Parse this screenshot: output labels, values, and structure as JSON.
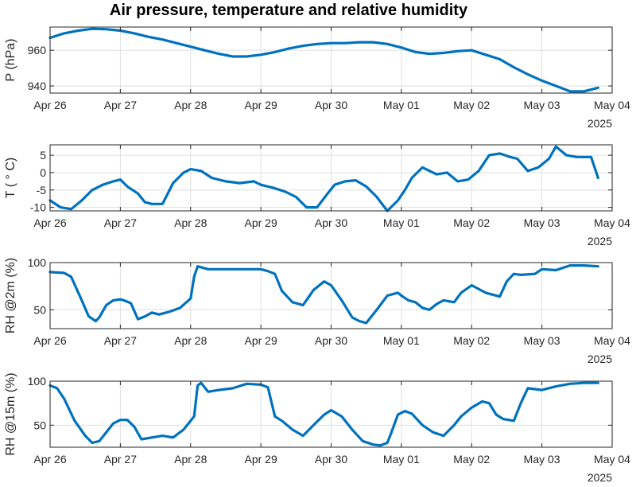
{
  "chart_data": {
    "title": "Air pressure, temperature and relative humidity",
    "line_color": "#0072BD",
    "x_tick_labels": [
      "Apr 26",
      "Apr 27",
      "Apr 28",
      "Apr 29",
      "Apr 30",
      "May 01",
      "May 02",
      "May 03",
      "May 04"
    ],
    "x_year_label": "2025",
    "panels": [
      {
        "type": "line",
        "ylabel": "P (hPa)",
        "xlim": [
          0,
          8
        ],
        "ylim": [
          936,
          973
        ],
        "yticks": [
          940,
          960
        ],
        "grid": true,
        "x": [
          0,
          0.2,
          0.4,
          0.6,
          0.8,
          1.0,
          1.2,
          1.4,
          1.6,
          1.8,
          2.0,
          2.2,
          2.4,
          2.6,
          2.8,
          3.0,
          3.2,
          3.4,
          3.6,
          3.8,
          4.0,
          4.2,
          4.4,
          4.6,
          4.8,
          5.0,
          5.2,
          5.4,
          5.6,
          5.8,
          6.0,
          6.2,
          6.4,
          6.6,
          6.8,
          7.0,
          7.2,
          7.4,
          7.6,
          7.8
        ],
        "y": [
          967,
          969.5,
          971,
          972,
          971.8,
          971,
          969.5,
          967.5,
          966,
          964,
          962,
          960,
          958,
          956.5,
          956.5,
          957.5,
          959,
          961,
          962.5,
          963.5,
          964,
          964,
          964.5,
          964.5,
          963.5,
          961.5,
          959,
          958,
          958.5,
          959.5,
          960,
          957.5,
          955,
          950.5,
          946.5,
          943,
          940,
          937,
          937,
          939
        ]
      },
      {
        "type": "line",
        "ylabel": "T ( ° C)",
        "xlim": [
          0,
          8
        ],
        "ylim": [
          -11,
          8
        ],
        "yticks": [
          -10,
          -5,
          0,
          5
        ],
        "grid": true,
        "x": [
          0,
          0.15,
          0.3,
          0.45,
          0.6,
          0.75,
          0.9,
          1.0,
          1.1,
          1.25,
          1.35,
          1.45,
          1.6,
          1.75,
          1.9,
          2.0,
          2.15,
          2.3,
          2.5,
          2.7,
          2.9,
          3.0,
          3.1,
          3.2,
          3.35,
          3.5,
          3.65,
          3.8,
          3.95,
          4.05,
          4.2,
          4.35,
          4.5,
          4.65,
          4.8,
          4.95,
          5.05,
          5.15,
          5.3,
          5.5,
          5.65,
          5.8,
          5.95,
          6.1,
          6.25,
          6.4,
          6.55,
          6.65,
          6.8,
          6.95,
          7.1,
          7.2,
          7.35,
          7.5,
          7.7,
          7.8
        ],
        "y": [
          -8,
          -10,
          -10.5,
          -8,
          -5,
          -3.5,
          -2.5,
          -2,
          -4,
          -6,
          -8.5,
          -9,
          -9,
          -3,
          0,
          1,
          0.5,
          -1.5,
          -2.5,
          -3,
          -2.5,
          -3.5,
          -4,
          -4.5,
          -5.5,
          -7,
          -10,
          -10,
          -6,
          -3.5,
          -2.5,
          -2.2,
          -4,
          -7,
          -11,
          -8,
          -5,
          -1.5,
          1.5,
          -0.5,
          0,
          -2.5,
          -2,
          0.5,
          5,
          5.5,
          4.5,
          4,
          0.5,
          1.5,
          4,
          7.5,
          5,
          4.5,
          4.5,
          -1.5
        ]
      },
      {
        "type": "line",
        "ylabel": "RH @2m (%)",
        "xlim": [
          0,
          8
        ],
        "ylim": [
          30,
          100
        ],
        "yticks": [
          50,
          100
        ],
        "grid": true,
        "x": [
          0,
          0.2,
          0.3,
          0.45,
          0.55,
          0.65,
          0.7,
          0.8,
          0.9,
          1.0,
          1.05,
          1.15,
          1.25,
          1.35,
          1.45,
          1.55,
          1.7,
          1.85,
          2.0,
          2.05,
          2.1,
          2.15,
          2.25,
          2.4,
          2.6,
          2.8,
          3.0,
          3.1,
          3.2,
          3.3,
          3.45,
          3.6,
          3.75,
          3.9,
          4.0,
          4.15,
          4.3,
          4.4,
          4.5,
          4.65,
          4.8,
          4.95,
          5.0,
          5.1,
          5.2,
          5.3,
          5.4,
          5.5,
          5.6,
          5.75,
          5.85,
          6.0,
          6.2,
          6.4,
          6.5,
          6.6,
          6.7,
          6.9,
          7.0,
          7.2,
          7.4,
          7.6,
          7.8
        ],
        "y": [
          90,
          89,
          85,
          60,
          43,
          38,
          42,
          55,
          60,
          61,
          60,
          57,
          40,
          43,
          47,
          45,
          48,
          52,
          62,
          85,
          96,
          95,
          93,
          93,
          93,
          93,
          93,
          91,
          88,
          70,
          58,
          55,
          71,
          80,
          76,
          60,
          42,
          38,
          36,
          50,
          65,
          68,
          65,
          60,
          58,
          52,
          50,
          56,
          60,
          58,
          68,
          76,
          68,
          64,
          80,
          88,
          87,
          88,
          93,
          92,
          97,
          97,
          96
        ]
      },
      {
        "type": "line",
        "ylabel": "RH @15m (%)",
        "xlim": [
          0,
          8
        ],
        "ylim": [
          25,
          100
        ],
        "yticks": [
          50,
          100
        ],
        "grid": true,
        "x": [
          0,
          0.1,
          0.2,
          0.35,
          0.5,
          0.6,
          0.7,
          0.8,
          0.9,
          1.0,
          1.1,
          1.2,
          1.3,
          1.45,
          1.6,
          1.75,
          1.9,
          2.0,
          2.05,
          2.1,
          2.15,
          2.25,
          2.4,
          2.6,
          2.8,
          3.0,
          3.1,
          3.2,
          3.3,
          3.45,
          3.6,
          3.75,
          3.9,
          4.0,
          4.15,
          4.3,
          4.45,
          4.6,
          4.7,
          4.8,
          4.85,
          4.95,
          5.05,
          5.15,
          5.3,
          5.45,
          5.6,
          5.75,
          5.85,
          6.0,
          6.15,
          6.25,
          6.35,
          6.45,
          6.6,
          6.7,
          6.8,
          7.0,
          7.2,
          7.4,
          7.6,
          7.8
        ],
        "y": [
          95,
          92,
          80,
          55,
          38,
          30,
          32,
          42,
          52,
          56,
          56,
          48,
          34,
          36,
          38,
          36,
          45,
          55,
          60,
          95,
          98,
          88,
          90,
          92,
          97,
          96,
          93,
          60,
          55,
          45,
          38,
          50,
          62,
          67,
          60,
          45,
          32,
          28,
          27,
          30,
          40,
          62,
          66,
          63,
          50,
          42,
          38,
          50,
          60,
          70,
          77,
          75,
          62,
          57,
          55,
          75,
          92,
          90,
          94,
          97,
          98,
          98
        ]
      }
    ]
  }
}
